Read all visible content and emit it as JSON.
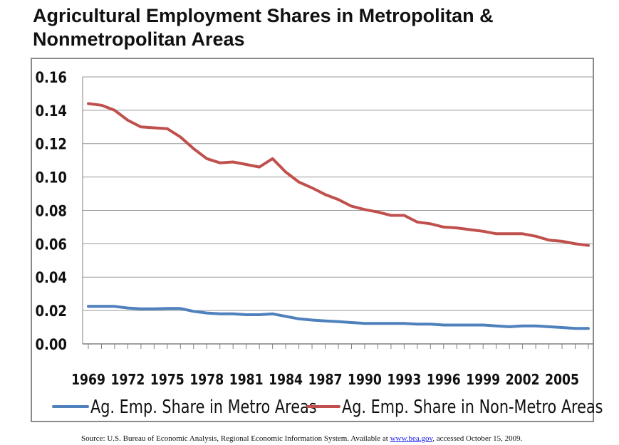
{
  "title": "Agricultural Employment Shares in Metropolitan & Nonmetropolitan Areas",
  "source": {
    "prefix": "Source: U.S. Bureau of Economic Analysis, Regional Economic Information System. Available at ",
    "link_text": "www.bea.gov",
    "suffix": ", accessed October 15, 2009."
  },
  "colors": {
    "metro": "#4f81bd",
    "nonmetro": "#c0504d",
    "grid": "#999999",
    "axis": "#808080"
  },
  "chart_data": {
    "type": "line",
    "xlabel": "",
    "ylabel": "",
    "ylim": [
      0,
      0.16
    ],
    "y_ticks": [
      "0.00",
      "0.02",
      "0.04",
      "0.06",
      "0.08",
      "0.10",
      "0.12",
      "0.14",
      "0.16"
    ],
    "x": [
      1969,
      1970,
      1971,
      1972,
      1973,
      1974,
      1975,
      1976,
      1977,
      1978,
      1979,
      1980,
      1981,
      1982,
      1983,
      1984,
      1985,
      1986,
      1987,
      1988,
      1989,
      1990,
      1991,
      1992,
      1993,
      1994,
      1995,
      1996,
      1997,
      1998,
      1999,
      2000,
      2001,
      2002,
      2003,
      2004,
      2005,
      2006,
      2007
    ],
    "x_tick_labels": [
      "1969",
      "1972",
      "1975",
      "1978",
      "1981",
      "1984",
      "1987",
      "1990",
      "1993",
      "1996",
      "1999",
      "2002",
      "2005"
    ],
    "grid": true,
    "legend_position": "bottom",
    "series": [
      {
        "name": "Ag. Emp. Share in Metro Areas",
        "values": [
          0.0225,
          0.0225,
          0.0225,
          0.0215,
          0.021,
          0.021,
          0.0212,
          0.0212,
          0.0195,
          0.0185,
          0.018,
          0.018,
          0.0175,
          0.0175,
          0.018,
          0.0165,
          0.015,
          0.0143,
          0.0138,
          0.0133,
          0.0128,
          0.0123,
          0.0123,
          0.0123,
          0.0123,
          0.0118,
          0.0118,
          0.0113,
          0.0113,
          0.0113,
          0.0113,
          0.0108,
          0.0103,
          0.0108,
          0.0108,
          0.0103,
          0.0098,
          0.0093,
          0.0093
        ]
      },
      {
        "name": "Ag. Emp. Share in Non-Metro Areas",
        "values": [
          0.144,
          0.143,
          0.14,
          0.134,
          0.13,
          0.1295,
          0.129,
          0.124,
          0.117,
          0.111,
          0.1085,
          0.109,
          0.1075,
          0.106,
          0.111,
          0.103,
          0.097,
          0.0935,
          0.0895,
          0.0865,
          0.0825,
          0.0805,
          0.079,
          0.077,
          0.077,
          0.073,
          0.072,
          0.07,
          0.0695,
          0.0685,
          0.0675,
          0.066,
          0.066,
          0.066,
          0.0645,
          0.0622,
          0.0615,
          0.06,
          0.059
        ]
      }
    ]
  }
}
